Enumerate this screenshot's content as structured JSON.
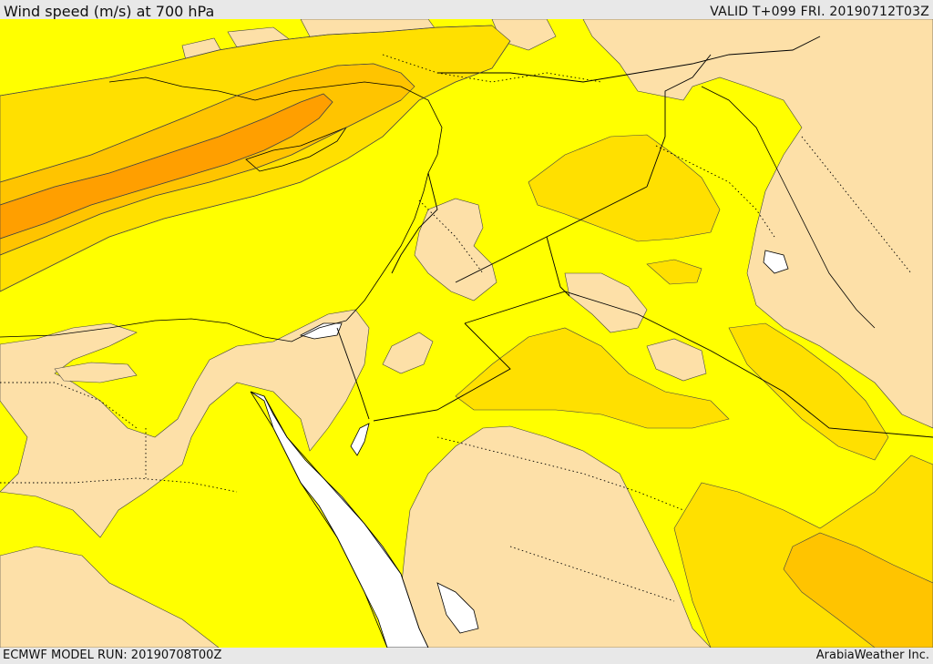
{
  "header": {
    "title": "Wind speed (m/s) at 700 hPa",
    "valid": "VALID T+099 FRI. 20190712T03Z"
  },
  "footer": {
    "model_run": "ECMWF MODEL RUN: 20190708T00Z",
    "credit": "ArabiaWeather Inc."
  },
  "map": {
    "colors": {
      "sea": "#ffffff",
      "band_0_5": "#fde0a8",
      "band_5_10": "#ffff00",
      "band_10_15": "#ffe000",
      "band_15_20": "#ffc400",
      "band_20_25": "#ff9f00",
      "contour": "#444444",
      "coast": "#000000"
    }
  }
}
